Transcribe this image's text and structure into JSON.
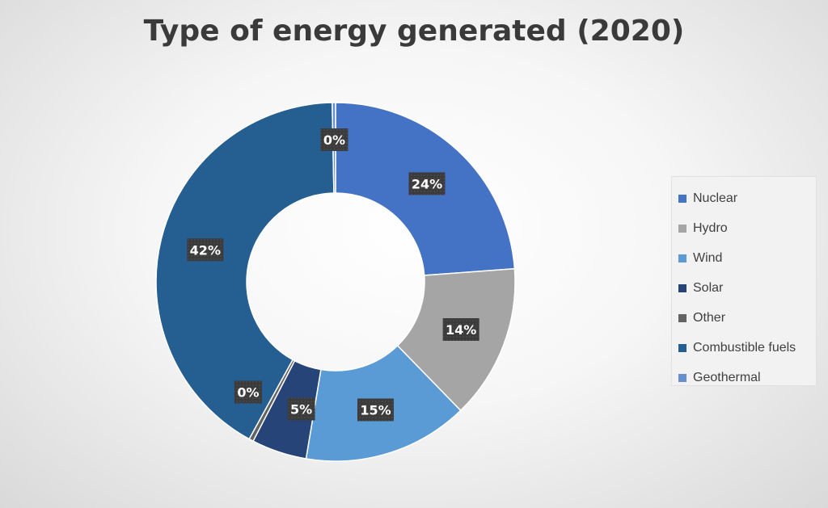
{
  "chart_data": {
    "type": "pie",
    "title": "Type of energy generated (2020)",
    "donut": true,
    "categories": [
      "Nuclear",
      "Hydro",
      "Wind",
      "Solar",
      "Other",
      "Combustible fuels",
      "Geothermal"
    ],
    "values": [
      24,
      14,
      15,
      5,
      0.4,
      42,
      0.3
    ],
    "data_labels": [
      "24%",
      "14%",
      "15%",
      "5%",
      "0%",
      "42%",
      "0%"
    ],
    "colors": [
      "#4472c4",
      "#a5a5a5",
      "#5b9bd5",
      "#264478",
      "#636363",
      "#255e91",
      "#698ed0"
    ],
    "legend_position": "right"
  }
}
